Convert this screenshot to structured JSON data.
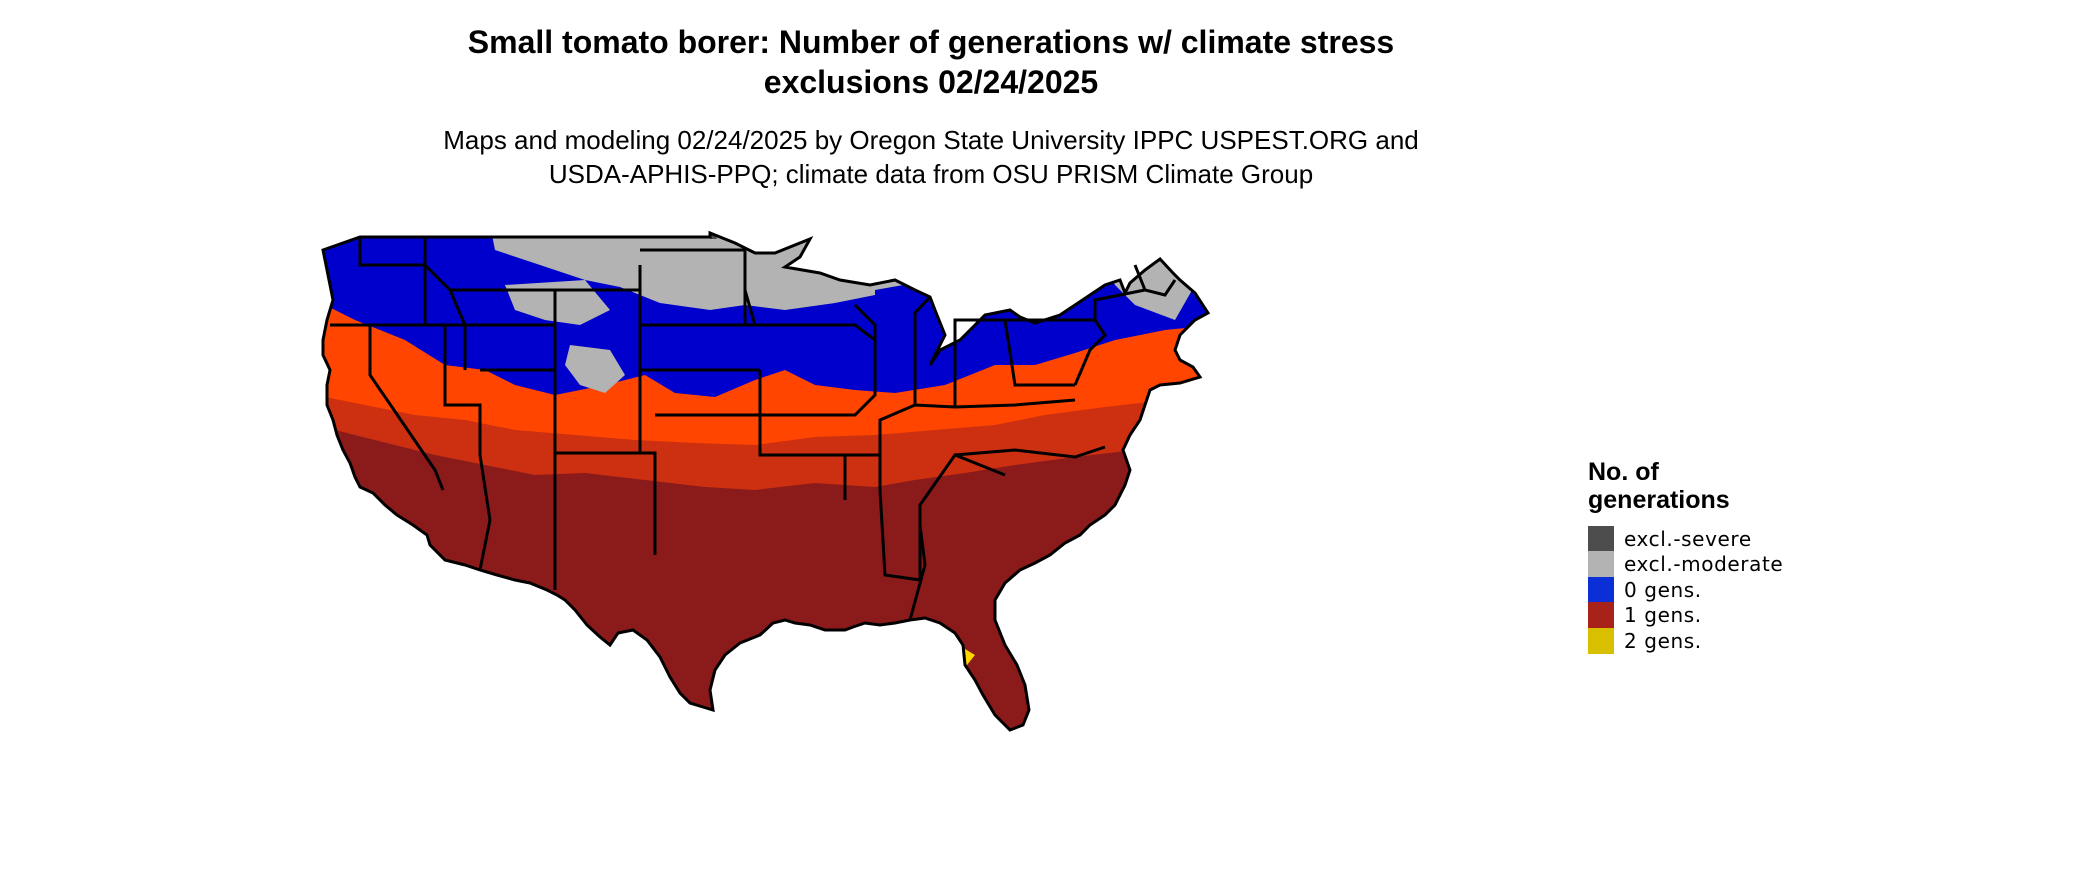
{
  "title_line1": "Small tomato borer: Number of generations w/ climate stress",
  "title_line2": "exclusions 02/24/2025",
  "subtitle_line1": "Maps and modeling 02/24/2025 by Oregon State University IPPC USPEST.ORG and",
  "subtitle_line2": "USDA-APHIS-PPQ; climate data from OSU PRISM Climate Group",
  "legend": {
    "title_line1": "No. of",
    "title_line2": "generations",
    "items": [
      {
        "label": "excl.-severe",
        "color": "#4d4d4d"
      },
      {
        "label": "excl.-moderate",
        "color": "#b3b3b3"
      },
      {
        "label": "0 gens.",
        "color": "#0a2fd6"
      },
      {
        "label": "1 gens.",
        "color": "#a8221a"
      },
      {
        "label": "2 gens.",
        "color": "#d8c000"
      }
    ]
  },
  "map_colors": {
    "excl_severe": "#4d4d4d",
    "excl_moderate": "#b3b3b3",
    "zero_gens": "#0000cc",
    "one_gens_dark": "#8b1a1a",
    "one_gens_mid": "#cc3010",
    "one_gens_light": "#ff4500",
    "two_gens": "#ffd700",
    "borders": "#000000"
  }
}
